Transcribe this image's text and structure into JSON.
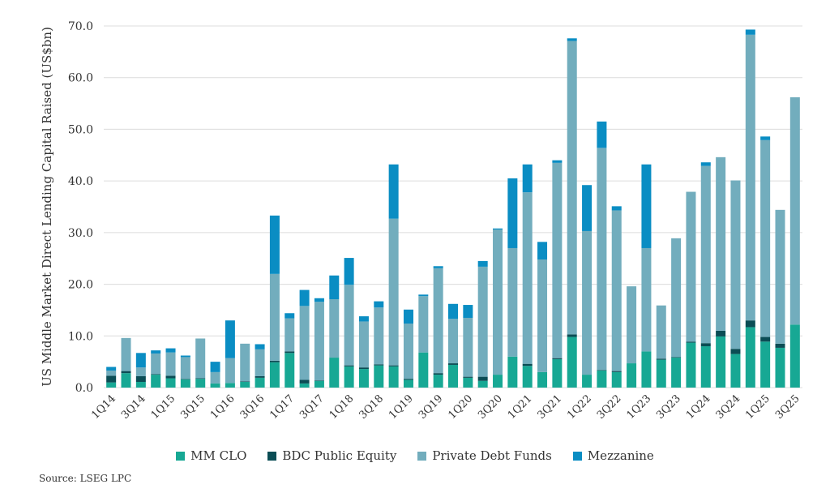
{
  "chart_data": {
    "type": "bar",
    "stacked": true,
    "title": "",
    "xlabel": "",
    "ylabel": "US Middle Market Direct Lending Capital Raised (US$bn)",
    "ylim": [
      0,
      70
    ],
    "yticks": [
      "0.0",
      "10.0",
      "20.0",
      "30.0",
      "40.0",
      "50.0",
      "60.0",
      "70.0"
    ],
    "grid": true,
    "legend_position": "bottom",
    "categories": [
      "1Q14",
      "2Q14",
      "3Q14",
      "4Q14",
      "1Q15",
      "2Q15",
      "3Q15",
      "4Q15",
      "1Q16",
      "2Q16",
      "3Q16",
      "4Q16",
      "1Q17",
      "2Q17",
      "3Q17",
      "4Q17",
      "1Q18",
      "2Q18",
      "3Q18",
      "4Q18",
      "1Q19",
      "2Q19",
      "3Q19",
      "4Q19",
      "1Q20",
      "2Q20",
      "3Q20",
      "4Q20",
      "1Q21",
      "2Q21",
      "3Q21",
      "4Q21",
      "1Q22",
      "2Q22",
      "3Q22",
      "4Q22",
      "1Q23",
      "2Q23",
      "3Q23",
      "4Q23",
      "1Q24",
      "2Q24",
      "3Q24",
      "4Q24",
      "1Q25",
      "2Q25",
      "3Q25"
    ],
    "series": [
      {
        "name": "MM CLO",
        "color": "#17a894",
        "values": [
          1.0,
          2.8,
          1.1,
          2.5,
          1.8,
          1.6,
          1.7,
          0.8,
          0.9,
          1.1,
          1.9,
          4.9,
          6.7,
          0.8,
          1.3,
          5.8,
          4.1,
          3.6,
          4.3,
          4.1,
          1.5,
          6.8,
          2.5,
          4.4,
          1.9,
          1.3,
          2.5,
          6.0,
          4.2,
          3.0,
          5.5,
          9.8,
          2.5,
          3.3,
          3.0,
          4.7,
          7.0,
          5.4,
          5.8,
          8.7,
          8.0,
          9.9,
          6.5,
          11.7,
          8.9,
          7.7,
          12.2
        ]
      },
      {
        "name": "BDC Public Equity",
        "color": "#0b4d55",
        "values": [
          1.3,
          0.4,
          1.1,
          0.1,
          0.5,
          0.1,
          0.1,
          0,
          0,
          0.1,
          0.3,
          0.3,
          0.3,
          0.7,
          0.1,
          0,
          0.2,
          0.3,
          0.2,
          0.2,
          0.2,
          0,
          0.3,
          0.3,
          0.2,
          0.8,
          0,
          0,
          0.4,
          0,
          0.2,
          0.5,
          0,
          0.1,
          0.2,
          0,
          0,
          0.2,
          0.1,
          0.2,
          0.6,
          1.1,
          1.0,
          1.3,
          0.9,
          0.8,
          0
        ]
      },
      {
        "name": "Private Debt Funds",
        "color": "#72adbd",
        "values": [
          1.0,
          6.4,
          1.7,
          4.0,
          4.5,
          4.2,
          7.7,
          2.2,
          4.8,
          7.3,
          5.2,
          16.8,
          6.4,
          14.3,
          15.2,
          11.3,
          15.6,
          8.9,
          11.0,
          28.4,
          10.7,
          10.9,
          20.3,
          8.6,
          11.4,
          21.3,
          28.1,
          21.0,
          33.2,
          21.8,
          37.8,
          56.8,
          27.8,
          43.0,
          31.1,
          14.9,
          20.0,
          10.3,
          23.0,
          29.0,
          34.3,
          33.6,
          32.6,
          55.3,
          38.1,
          25.9,
          44.0
        ]
      },
      {
        "name": "Mezzanine",
        "color": "#0a8dc3",
        "values": [
          0.7,
          0,
          2.8,
          0.6,
          0.8,
          0.3,
          0,
          2.0,
          7.3,
          0,
          1.0,
          11.3,
          1.0,
          3.1,
          0.7,
          4.6,
          5.2,
          1.0,
          1.2,
          10.5,
          2.7,
          0.3,
          0.4,
          2.9,
          2.5,
          1.1,
          0.2,
          13.5,
          5.4,
          3.4,
          0.5,
          0.5,
          8.9,
          5.1,
          0.8,
          0,
          16.2,
          0,
          0,
          0,
          0.7,
          0,
          0,
          1.0,
          0.7,
          0,
          0
        ]
      }
    ],
    "x_tick_labels": [
      "1Q14",
      "3Q14",
      "1Q15",
      "3Q15",
      "1Q16",
      "3Q16",
      "1Q17",
      "3Q17",
      "1Q18",
      "3Q18",
      "1Q19",
      "3Q19",
      "1Q20",
      "3Q20",
      "1Q21",
      "3Q21",
      "1Q22",
      "3Q22",
      "1Q23",
      "3Q23",
      "1Q24",
      "3Q24",
      "1Q25",
      "3Q25"
    ]
  },
  "source": "Source: LSEG LPC"
}
